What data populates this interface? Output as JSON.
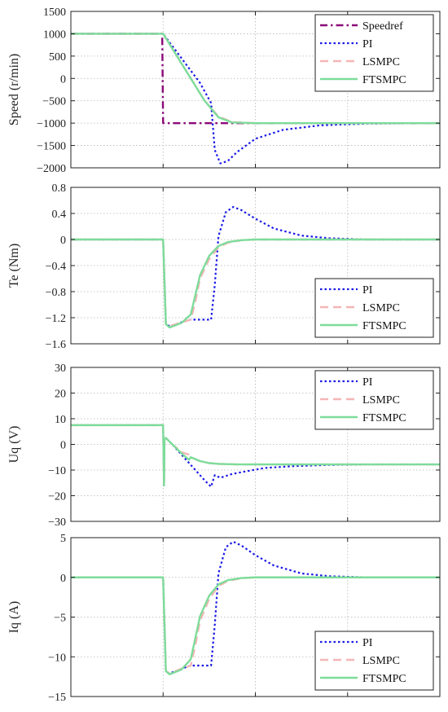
{
  "chart_data": [
    {
      "type": "line",
      "ylabel": "Speed (r/min)",
      "xlabel": "",
      "xlim": [
        0,
        4
      ],
      "ylim": [
        -2000,
        1500
      ],
      "yticks": [
        1500,
        1000,
        500,
        0,
        -500,
        -1000,
        -1500,
        -2000
      ],
      "ytick_labels": [
        "1500",
        "1000",
        "500",
        "0",
        "−500",
        "−1000",
        "−1500",
        "−2000"
      ],
      "xticks": [
        0,
        1,
        2,
        3,
        4
      ],
      "grid": true,
      "legend_position": "top-right",
      "series": [
        {
          "name": "Speedref",
          "color": "#8b0a7a",
          "style": "dashdot",
          "x": [
            0,
            0.99,
            1.0,
            4.0
          ],
          "y": [
            1000,
            1000,
            -1000,
            -1000
          ]
        },
        {
          "name": "PI",
          "color": "#1a1ae6",
          "style": "dotted",
          "x": [
            0,
            1.0,
            1.2,
            1.4,
            1.52,
            1.56,
            1.62,
            1.7,
            1.8,
            2.0,
            2.3,
            2.7,
            3.2,
            4.0
          ],
          "y": [
            1000,
            1000,
            450,
            -100,
            -550,
            -1600,
            -1900,
            -1850,
            -1650,
            -1350,
            -1150,
            -1050,
            -1010,
            -1000
          ]
        },
        {
          "name": "LSMPC",
          "color": "#f4b6b6",
          "style": "dashed",
          "x": [
            0,
            1.0,
            1.15,
            1.3,
            1.45,
            1.6,
            1.75,
            2.0,
            4.0
          ],
          "y": [
            1000,
            1000,
            500,
            0,
            -500,
            -850,
            -980,
            -1000,
            -1000
          ]
        },
        {
          "name": "FTSMPC",
          "color": "#7ddc9a",
          "style": "solid",
          "x": [
            0,
            1.0,
            1.15,
            1.3,
            1.45,
            1.6,
            1.75,
            2.0,
            4.0
          ],
          "y": [
            1000,
            1000,
            500,
            0,
            -500,
            -870,
            -985,
            -1000,
            -1000
          ]
        }
      ]
    },
    {
      "type": "line",
      "ylabel": "Te (Nm)",
      "xlabel": "",
      "xlim": [
        0,
        4
      ],
      "ylim": [
        -1.6,
        0.8
      ],
      "yticks": [
        0.8,
        0.4,
        0,
        -0.4,
        -0.8,
        -1.2,
        -1.6
      ],
      "ytick_labels": [
        "0.8",
        "0.4",
        "0",
        "−0.4",
        "−0.8",
        "−1.2",
        "−1.6"
      ],
      "xticks": [
        0,
        1,
        2,
        3,
        4
      ],
      "grid": true,
      "legend_position": "bottom-right",
      "series": [
        {
          "name": "PI",
          "color": "#1a1ae6",
          "style": "dotted",
          "x": [
            0,
            1.0,
            1.03,
            1.07,
            1.2,
            1.3,
            1.52,
            1.56,
            1.6,
            1.68,
            1.76,
            1.85,
            2.0,
            2.2,
            2.5,
            2.8,
            3.2,
            4.0
          ],
          "y": [
            0,
            0,
            -1.3,
            -1.33,
            -1.27,
            -1.23,
            -1.23,
            -0.7,
            0.05,
            0.42,
            0.5,
            0.45,
            0.32,
            0.17,
            0.06,
            0.02,
            0.0,
            0.0
          ]
        },
        {
          "name": "LSMPC",
          "color": "#f4b6b6",
          "style": "dashed",
          "x": [
            0,
            1.0,
            1.03,
            1.07,
            1.2,
            1.3,
            1.35,
            1.4,
            1.5,
            1.6,
            1.7,
            1.85,
            2.0,
            4.0
          ],
          "y": [
            0,
            0,
            -1.3,
            -1.33,
            -1.27,
            -1.23,
            -0.95,
            -0.6,
            -0.3,
            -0.12,
            -0.05,
            -0.01,
            0.0,
            0.0
          ]
        },
        {
          "name": "FTSMPC",
          "color": "#7ddc9a",
          "style": "solid",
          "x": [
            0,
            1.0,
            1.03,
            1.07,
            1.2,
            1.3,
            1.35,
            1.4,
            1.5,
            1.6,
            1.7,
            1.85,
            2.0,
            4.0
          ],
          "y": [
            0,
            0,
            -1.3,
            -1.35,
            -1.28,
            -1.15,
            -0.85,
            -0.55,
            -0.25,
            -0.1,
            -0.04,
            -0.01,
            0.0,
            0.0
          ]
        }
      ]
    },
    {
      "type": "line",
      "ylabel": "Uq (V)",
      "xlabel": "",
      "xlim": [
        0,
        4
      ],
      "ylim": [
        -30,
        30
      ],
      "yticks": [
        30,
        20,
        10,
        0,
        -10,
        -20,
        -30
      ],
      "ytick_labels": [
        "30",
        "20",
        "10",
        "0",
        "−10",
        "−20",
        "−30"
      ],
      "xticks": [
        0,
        1,
        2,
        3,
        4
      ],
      "grid": true,
      "legend_position": "top-right",
      "series": [
        {
          "name": "PI",
          "color": "#1a1ae6",
          "style": "dotted",
          "x": [
            0,
            1.0,
            1.01,
            1.015,
            1.03,
            1.1,
            1.2,
            1.3,
            1.45,
            1.52,
            1.56,
            1.62,
            1.75,
            1.9,
            2.1,
            2.4,
            2.8,
            3.2,
            4.0
          ],
          "y": [
            7.5,
            7.5,
            -16,
            2,
            2.5,
            0,
            -4,
            -8,
            -14,
            -16.5,
            -12,
            -13,
            -11.5,
            -10.5,
            -9.2,
            -8.5,
            -8.0,
            -7.8,
            -7.8
          ]
        },
        {
          "name": "LSMPC",
          "color": "#f4b6b6",
          "style": "dashed",
          "x": [
            0,
            1.0,
            1.01,
            1.015,
            1.03,
            1.1,
            1.2,
            1.28,
            1.3,
            1.4,
            1.5,
            1.6,
            1.8,
            2.0,
            4.0
          ],
          "y": [
            7.5,
            7.5,
            -16,
            2,
            2.5,
            0,
            -3,
            -4,
            -5,
            -6.5,
            -7.3,
            -7.6,
            -7.8,
            -7.8,
            -7.8
          ]
        },
        {
          "name": "FTSMPC",
          "color": "#7ddc9a",
          "style": "solid",
          "x": [
            0,
            1.0,
            1.01,
            1.015,
            1.03,
            1.1,
            1.2,
            1.28,
            1.3,
            1.4,
            1.5,
            1.6,
            1.8,
            2.0,
            4.0
          ],
          "y": [
            7.5,
            7.5,
            -16,
            2,
            2.5,
            0,
            -3.5,
            -6,
            -5,
            -6.5,
            -7.3,
            -7.6,
            -7.8,
            -7.8,
            -7.8
          ]
        }
      ]
    },
    {
      "type": "line",
      "ylabel": "Iq (A)",
      "xlabel": "",
      "xlim": [
        0,
        4
      ],
      "ylim": [
        -15,
        5
      ],
      "yticks": [
        5,
        0,
        -5,
        -10,
        -15
      ],
      "ytick_labels": [
        "5",
        "0",
        "−5",
        "−10",
        "−15"
      ],
      "xticks": [
        0,
        1,
        2,
        3,
        4
      ],
      "grid": true,
      "legend_position": "bottom-right",
      "series": [
        {
          "name": "PI",
          "color": "#1a1ae6",
          "style": "dotted",
          "x": [
            0,
            1.0,
            1.03,
            1.07,
            1.2,
            1.3,
            1.52,
            1.56,
            1.6,
            1.68,
            1.76,
            1.85,
            2.0,
            2.2,
            2.5,
            2.8,
            3.2,
            4.0
          ],
          "y": [
            0,
            0,
            -11.8,
            -12.1,
            -11.5,
            -11.1,
            -11.1,
            -6,
            0.5,
            3.8,
            4.5,
            4.0,
            2.8,
            1.5,
            0.5,
            0.15,
            0.0,
            0.0
          ]
        },
        {
          "name": "LSMPC",
          "color": "#f4b6b6",
          "style": "dashed",
          "x": [
            0,
            1.0,
            1.03,
            1.07,
            1.2,
            1.3,
            1.35,
            1.4,
            1.5,
            1.6,
            1.7,
            1.85,
            2.0,
            4.0
          ],
          "y": [
            0,
            0,
            -11.8,
            -12.1,
            -11.5,
            -11.1,
            -8.5,
            -5.5,
            -2.7,
            -1.1,
            -0.45,
            -0.1,
            0.0,
            0.0
          ]
        },
        {
          "name": "FTSMPC",
          "color": "#7ddc9a",
          "style": "solid",
          "x": [
            0,
            1.0,
            1.03,
            1.07,
            1.2,
            1.3,
            1.35,
            1.4,
            1.5,
            1.6,
            1.7,
            1.85,
            2.0,
            4.0
          ],
          "y": [
            0,
            0,
            -11.8,
            -12.2,
            -11.6,
            -10.3,
            -7.6,
            -4.9,
            -2.3,
            -0.9,
            -0.35,
            -0.08,
            0.0,
            0.0
          ]
        }
      ]
    }
  ]
}
